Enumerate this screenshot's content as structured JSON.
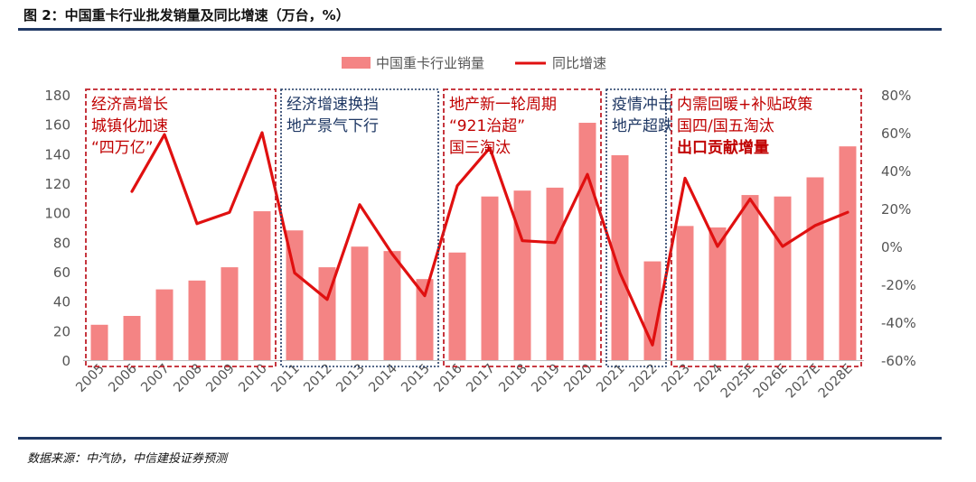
{
  "figure_title": "图 2：中国重卡行业批发销量及同比增速（万台，%）",
  "source": "数据来源：中汽协，中信建投证券预测",
  "colors": {
    "bar": "#f48484",
    "line": "#e01010",
    "rule": "#1f3864",
    "box_red": "#c0202a",
    "box_blue": "#1f3864"
  },
  "chart_data": {
    "type": "bar+line",
    "categories": [
      "2005",
      "2006",
      "2007",
      "2008",
      "2009",
      "2010",
      "2011",
      "2012",
      "2013",
      "2014",
      "2015",
      "2016",
      "2017",
      "2018",
      "2019",
      "2020",
      "2021",
      "2022",
      "2023",
      "2024",
      "2025E",
      "2026E",
      "2027E",
      "2028E"
    ],
    "series": [
      {
        "name": "中国重卡行业销量",
        "type": "bar",
        "axis": "left",
        "values": [
          24,
          30,
          48,
          54,
          63,
          101,
          88,
          63,
          77,
          74,
          55,
          73,
          111,
          115,
          117,
          161,
          139,
          67,
          91,
          90,
          112,
          111,
          124,
          145
        ]
      },
      {
        "name": "同比增速",
        "type": "line",
        "axis": "right",
        "values": [
          null,
          29,
          59,
          12,
          18,
          60,
          -14,
          -28,
          22,
          -4,
          -26,
          32,
          52,
          3,
          2,
          38,
          -14,
          -52,
          36,
          0,
          25,
          0,
          11,
          18
        ]
      }
    ],
    "left_axis": {
      "min": 0,
      "max": 180,
      "step": 20,
      "ticks": [
        "0",
        "20",
        "40",
        "60",
        "80",
        "100",
        "120",
        "140",
        "160",
        "180"
      ]
    },
    "right_axis": {
      "min": -60,
      "max": 80,
      "step": 20,
      "ticks": [
        "-60%",
        "-40%",
        "-20%",
        "0%",
        "20%",
        "40%",
        "60%",
        "80%"
      ]
    },
    "legend": {
      "position": "top-center",
      "items": [
        "中国重卡行业销量",
        "同比增速"
      ]
    },
    "annotations": [
      {
        "from": "2005",
        "to": "2010",
        "style": "red",
        "lines": [
          {
            "text": "经济高增长",
            "color": "red",
            "bold": false
          },
          {
            "text": "城镇化加速",
            "color": "red",
            "bold": false
          },
          {
            "text": "“四万亿”",
            "color": "red",
            "bold": false
          }
        ]
      },
      {
        "from": "2011",
        "to": "2015",
        "style": "blue",
        "lines": [
          {
            "text": "经济增速换挡",
            "color": "blue",
            "bold": false
          },
          {
            "text": "地产景气下行",
            "color": "blue",
            "bold": false
          }
        ]
      },
      {
        "from": "2016",
        "to": "2020",
        "style": "red",
        "lines": [
          {
            "text": "地产新一轮周期",
            "color": "red",
            "bold": false
          },
          {
            "text": "“921治超”",
            "color": "red",
            "bold": false
          },
          {
            "text": "国三淘汰",
            "color": "red",
            "bold": false
          }
        ]
      },
      {
        "from": "2021",
        "to": "2022",
        "style": "blue",
        "lines": [
          {
            "text": "疫情冲击",
            "color": "blue",
            "bold": false
          },
          {
            "text": "地产超跌",
            "color": "blue",
            "bold": false
          }
        ]
      },
      {
        "from": "2023",
        "to": "2028E",
        "style": "red",
        "lines": [
          {
            "text": "内需回暖+补贴政策",
            "color": "red",
            "bold": false
          },
          {
            "text": "国四/国五淘汰",
            "color": "red",
            "bold": false
          },
          {
            "text": "出口贡献增量",
            "color": "red",
            "bold": true
          }
        ]
      }
    ]
  }
}
